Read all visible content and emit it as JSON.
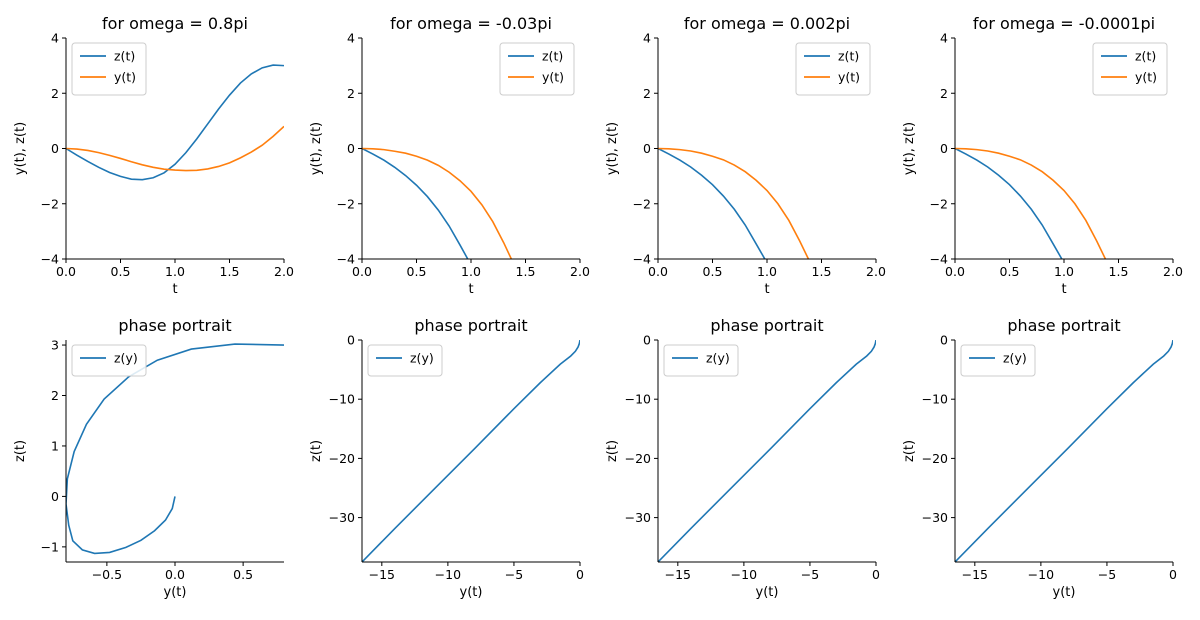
{
  "colors": {
    "blue": "#1f77b4",
    "orange": "#ff7f0e"
  },
  "chart_data": [
    {
      "type": "line",
      "title": "for omega = 0.8pi",
      "xlabel": "t",
      "ylabel": "y(t), z(t)",
      "xlim": [
        0,
        2.0
      ],
      "ylim": [
        -4,
        4
      ],
      "xticks": [
        "0.0",
        "0.5",
        "1.0",
        "1.5",
        "2.0"
      ],
      "yticks": [
        "−4",
        "−2",
        "0",
        "2",
        "4"
      ],
      "legend": "top-left",
      "series": [
        {
          "name": "z(t)",
          "color": "#1f77b4",
          "x": [
            0,
            0.1,
            0.2,
            0.3,
            0.4,
            0.5,
            0.6,
            0.7,
            0.8,
            0.9,
            1.0,
            1.1,
            1.2,
            1.3,
            1.4,
            1.5,
            1.6,
            1.7,
            1.8,
            1.9,
            2.0
          ],
          "y": [
            0,
            -0.24,
            -0.47,
            -0.68,
            -0.87,
            -1.01,
            -1.11,
            -1.13,
            -1.06,
            -0.88,
            -0.57,
            -0.15,
            0.35,
            0.89,
            1.43,
            1.93,
            2.37,
            2.7,
            2.92,
            3.02,
            3.0
          ]
        },
        {
          "name": "y(t)",
          "color": "#ff7f0e",
          "x": [
            0,
            0.1,
            0.2,
            0.3,
            0.4,
            0.5,
            0.6,
            0.7,
            0.8,
            0.9,
            1.0,
            1.1,
            1.2,
            1.3,
            1.4,
            1.5,
            1.6,
            1.7,
            1.8,
            1.9,
            2.0
          ],
          "y": [
            0,
            -0.02,
            -0.07,
            -0.15,
            -0.25,
            -0.36,
            -0.48,
            -0.59,
            -0.68,
            -0.75,
            -0.78,
            -0.8,
            -0.79,
            -0.74,
            -0.65,
            -0.52,
            -0.34,
            -0.13,
            0.12,
            0.44,
            0.8
          ]
        }
      ]
    },
    {
      "type": "line",
      "title": "for omega = -0.03pi",
      "xlabel": "t",
      "ylabel": "y(t), z(t)",
      "xlim": [
        0,
        2.0
      ],
      "ylim": [
        -4,
        4
      ],
      "xticks": [
        "0.0",
        "0.5",
        "1.0",
        "1.5",
        "2.0"
      ],
      "yticks": [
        "−4",
        "−2",
        "0",
        "2",
        "4"
      ],
      "legend": "top-right",
      "series": [
        {
          "name": "z(t)",
          "color": "#1f77b4",
          "x": [
            0,
            0.1,
            0.2,
            0.3,
            0.4,
            0.5,
            0.6,
            0.7,
            0.8,
            0.9,
            0.97
          ],
          "y": [
            0,
            -0.2,
            -0.42,
            -0.68,
            -0.98,
            -1.33,
            -1.74,
            -2.23,
            -2.81,
            -3.5,
            -4.0
          ]
        },
        {
          "name": "y(t)",
          "color": "#ff7f0e",
          "x": [
            0,
            0.1,
            0.2,
            0.3,
            0.4,
            0.5,
            0.6,
            0.7,
            0.8,
            0.9,
            1.0,
            1.1,
            1.2,
            1.3,
            1.37
          ],
          "y": [
            0,
            -0.01,
            -0.04,
            -0.1,
            -0.17,
            -0.28,
            -0.42,
            -0.61,
            -0.86,
            -1.17,
            -1.55,
            -2.04,
            -2.65,
            -3.41,
            -4.0
          ]
        }
      ]
    },
    {
      "type": "line",
      "title": "for omega = 0.002pi",
      "xlabel": "t",
      "ylabel": "y(t), z(t)",
      "xlim": [
        0,
        2.0
      ],
      "ylim": [
        -4,
        4
      ],
      "xticks": [
        "0.0",
        "0.5",
        "1.0",
        "1.5",
        "2.0"
      ],
      "yticks": [
        "−4",
        "−2",
        "0",
        "2",
        "4"
      ],
      "legend": "top-right",
      "series": [
        {
          "name": "z(t)",
          "color": "#1f77b4",
          "x": [
            0,
            0.1,
            0.2,
            0.3,
            0.4,
            0.5,
            0.6,
            0.7,
            0.8,
            0.9,
            0.98
          ],
          "y": [
            0,
            -0.2,
            -0.42,
            -0.67,
            -0.97,
            -1.31,
            -1.72,
            -2.2,
            -2.77,
            -3.45,
            -4.0
          ]
        },
        {
          "name": "y(t)",
          "color": "#ff7f0e",
          "x": [
            0,
            0.1,
            0.2,
            0.3,
            0.4,
            0.5,
            0.6,
            0.7,
            0.8,
            0.9,
            1.0,
            1.1,
            1.2,
            1.3,
            1.38
          ],
          "y": [
            0,
            -0.01,
            -0.04,
            -0.09,
            -0.17,
            -0.28,
            -0.41,
            -0.6,
            -0.84,
            -1.15,
            -1.52,
            -2.0,
            -2.6,
            -3.35,
            -4.0
          ]
        }
      ]
    },
    {
      "type": "line",
      "title": "for omega = -0.0001pi",
      "xlabel": "t",
      "ylabel": "y(t), z(t)",
      "xlim": [
        0,
        2.0
      ],
      "ylim": [
        -4,
        4
      ],
      "xticks": [
        "0.0",
        "0.5",
        "1.0",
        "1.5",
        "2.0"
      ],
      "yticks": [
        "−4",
        "−2",
        "0",
        "2",
        "4"
      ],
      "legend": "top-right",
      "series": [
        {
          "name": "z(t)",
          "color": "#1f77b4",
          "x": [
            0,
            0.1,
            0.2,
            0.3,
            0.4,
            0.5,
            0.6,
            0.7,
            0.8,
            0.9,
            0.98
          ],
          "y": [
            0,
            -0.2,
            -0.42,
            -0.67,
            -0.97,
            -1.31,
            -1.72,
            -2.2,
            -2.77,
            -3.45,
            -4.0
          ]
        },
        {
          "name": "y(t)",
          "color": "#ff7f0e",
          "x": [
            0,
            0.1,
            0.2,
            0.3,
            0.4,
            0.5,
            0.6,
            0.7,
            0.8,
            0.9,
            1.0,
            1.1,
            1.2,
            1.3,
            1.38
          ],
          "y": [
            0,
            -0.01,
            -0.04,
            -0.09,
            -0.17,
            -0.28,
            -0.41,
            -0.6,
            -0.84,
            -1.15,
            -1.52,
            -2.0,
            -2.6,
            -3.35,
            -4.0
          ]
        }
      ]
    },
    {
      "type": "line",
      "title": "phase portrait",
      "xlabel": "y(t)",
      "ylabel": "z(t)",
      "xlim": [
        -0.8,
        0.8
      ],
      "ylim": [
        -1.3,
        3.1
      ],
      "xticks": [
        "−0.5",
        "0.0",
        "0.5"
      ],
      "yticks": [
        "−1",
        "0",
        "1",
        "2",
        "3"
      ],
      "legend": "top-left",
      "series": [
        {
          "name": "z(y)",
          "color": "#1f77b4",
          "x": [
            0,
            -0.02,
            -0.07,
            -0.15,
            -0.25,
            -0.36,
            -0.48,
            -0.59,
            -0.68,
            -0.75,
            -0.78,
            -0.8,
            -0.79,
            -0.74,
            -0.65,
            -0.52,
            -0.34,
            -0.13,
            0.12,
            0.44,
            0.8
          ],
          "y": [
            0,
            -0.24,
            -0.47,
            -0.68,
            -0.87,
            -1.01,
            -1.11,
            -1.13,
            -1.06,
            -0.88,
            -0.57,
            -0.15,
            0.35,
            0.89,
            1.43,
            1.93,
            2.37,
            2.7,
            2.92,
            3.02,
            3.0
          ]
        }
      ]
    },
    {
      "type": "line",
      "title": "phase portrait",
      "xlabel": "y(t)",
      "ylabel": "z(t)",
      "xlim": [
        -16.5,
        0
      ],
      "ylim": [
        -37.5,
        0
      ],
      "xticks": [
        "−15",
        "−10",
        "−5",
        "0"
      ],
      "yticks": [
        "−30",
        "−20",
        "−10",
        "0"
      ],
      "legend": "top-left",
      "series": [
        {
          "name": "z(y)",
          "color": "#1f77b4",
          "x": [
            0,
            -0.05,
            -0.15,
            -0.35,
            -0.7,
            -1.5,
            -3,
            -5,
            -8,
            -11,
            -14,
            -16.5
          ],
          "y": [
            0,
            -0.6,
            -1.2,
            -1.9,
            -2.7,
            -4.1,
            -7.2,
            -11.6,
            -18.4,
            -25.1,
            -31.8,
            -37.5
          ]
        }
      ]
    },
    {
      "type": "line",
      "title": "phase portrait",
      "xlabel": "y(t)",
      "ylabel": "z(t)",
      "xlim": [
        -16.5,
        0
      ],
      "ylim": [
        -37.5,
        0
      ],
      "xticks": [
        "−15",
        "−10",
        "−5",
        "0"
      ],
      "yticks": [
        "−30",
        "−20",
        "−10",
        "0"
      ],
      "legend": "top-left",
      "series": [
        {
          "name": "z(y)",
          "color": "#1f77b4",
          "x": [
            0,
            -0.05,
            -0.15,
            -0.35,
            -0.7,
            -1.5,
            -3,
            -5,
            -8,
            -11,
            -14,
            -16.5
          ],
          "y": [
            0,
            -0.6,
            -1.2,
            -1.9,
            -2.7,
            -4.1,
            -7.2,
            -11.6,
            -18.4,
            -25.1,
            -31.8,
            -37.5
          ]
        }
      ]
    },
    {
      "type": "line",
      "title": "phase portrait",
      "xlabel": "y(t)",
      "ylabel": "z(t)",
      "xlim": [
        -16.5,
        0
      ],
      "ylim": [
        -37.5,
        0
      ],
      "xticks": [
        "−15",
        "−10",
        "−5",
        "0"
      ],
      "yticks": [
        "−30",
        "−20",
        "−10",
        "0"
      ],
      "legend": "top-left",
      "series": [
        {
          "name": "z(y)",
          "color": "#1f77b4",
          "x": [
            0,
            -0.05,
            -0.15,
            -0.35,
            -0.7,
            -1.5,
            -3,
            -5,
            -8,
            -11,
            -14,
            -16.5
          ],
          "y": [
            0,
            -0.6,
            -1.2,
            -1.9,
            -2.7,
            -4.1,
            -7.2,
            -11.6,
            -18.4,
            -25.1,
            -31.8,
            -37.5
          ]
        }
      ]
    }
  ]
}
